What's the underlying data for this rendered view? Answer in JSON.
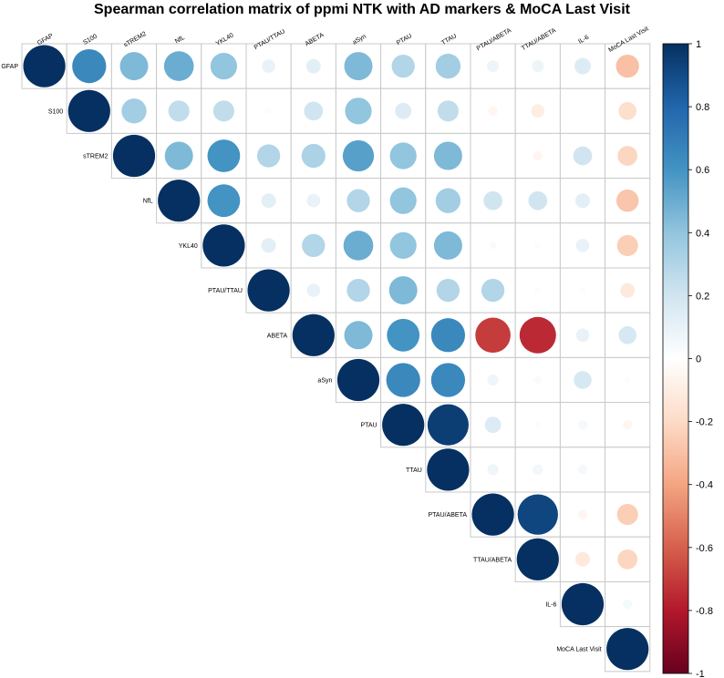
{
  "chart_data": {
    "type": "heatmap",
    "title": "Spearman correlation matrix of ppmi NTK with AD markers & MoCA Last Visit",
    "variables": [
      "GFAP",
      "S100",
      "sTREM2",
      "NfL",
      "YKL40",
      "PTAU/TTAU",
      "ABETA",
      "aSyn",
      "PTAU",
      "TTAU",
      "PTAU/ABETA",
      "TTAU/ABETA",
      "IL-6",
      "MoCA Last Visit"
    ],
    "matrix_upper": [
      [
        1.0,
        0.65,
        0.45,
        0.5,
        0.4,
        0.1,
        0.12,
        0.45,
        0.3,
        0.35,
        0.08,
        0.08,
        0.15,
        -0.3
      ],
      [
        null,
        1.0,
        0.35,
        0.25,
        0.25,
        -0.02,
        0.2,
        0.4,
        0.15,
        0.25,
        -0.05,
        -0.1,
        0.01,
        -0.18
      ],
      [
        null,
        null,
        1.0,
        0.45,
        0.6,
        0.3,
        0.32,
        0.55,
        0.4,
        0.45,
        0.01,
        -0.05,
        0.2,
        -0.22
      ],
      [
        null,
        null,
        null,
        1.0,
        0.6,
        0.12,
        0.1,
        0.3,
        0.4,
        0.35,
        0.2,
        0.2,
        0.12,
        -0.28
      ],
      [
        null,
        null,
        null,
        null,
        1.0,
        0.12,
        0.3,
        0.5,
        0.4,
        0.45,
        0.03,
        0.02,
        0.1,
        -0.25
      ],
      [
        null,
        null,
        null,
        null,
        null,
        1.0,
        0.1,
        0.3,
        0.45,
        0.3,
        0.3,
        0.02,
        0.02,
        -0.12
      ],
      [
        null,
        null,
        null,
        null,
        null,
        null,
        1.0,
        0.45,
        0.6,
        0.65,
        -0.7,
        -0.75,
        0.1,
        0.18
      ],
      [
        null,
        null,
        null,
        null,
        null,
        null,
        null,
        1.0,
        0.65,
        0.65,
        0.07,
        0.03,
        0.18,
        0.02
      ],
      [
        null,
        null,
        null,
        null,
        null,
        null,
        null,
        null,
        1.0,
        0.95,
        0.15,
        0.02,
        0.05,
        -0.05
      ],
      [
        null,
        null,
        null,
        null,
        null,
        null,
        null,
        null,
        null,
        1.0,
        0.07,
        0.06,
        0.05,
        0.0
      ],
      [
        null,
        null,
        null,
        null,
        null,
        null,
        null,
        null,
        null,
        null,
        1.0,
        0.92,
        -0.05,
        -0.25
      ],
      [
        null,
        null,
        null,
        null,
        null,
        null,
        null,
        null,
        null,
        null,
        null,
        1.0,
        -0.12,
        -0.22
      ],
      [
        null,
        null,
        null,
        null,
        null,
        null,
        null,
        null,
        null,
        null,
        null,
        null,
        1.0,
        0.05
      ],
      [
        null,
        null,
        null,
        null,
        null,
        null,
        null,
        null,
        null,
        null,
        null,
        null,
        null,
        1.0
      ]
    ],
    "legend": {
      "ticks": [
        "1",
        "0.8",
        "0.6",
        "0.4",
        "0.2",
        "0",
        "-0.2",
        "-0.4",
        "-0.6",
        "-0.8",
        "-1"
      ],
      "range": [
        -1,
        1
      ],
      "placement": "right"
    },
    "colors": {
      "scale": [
        "#67001F",
        "#B2182B",
        "#D6604D",
        "#F4A582",
        "#FDDBC7",
        "#FFFFFF",
        "#D1E5F0",
        "#92C5DE",
        "#4393C3",
        "#2166AC",
        "#053061"
      ]
    }
  }
}
